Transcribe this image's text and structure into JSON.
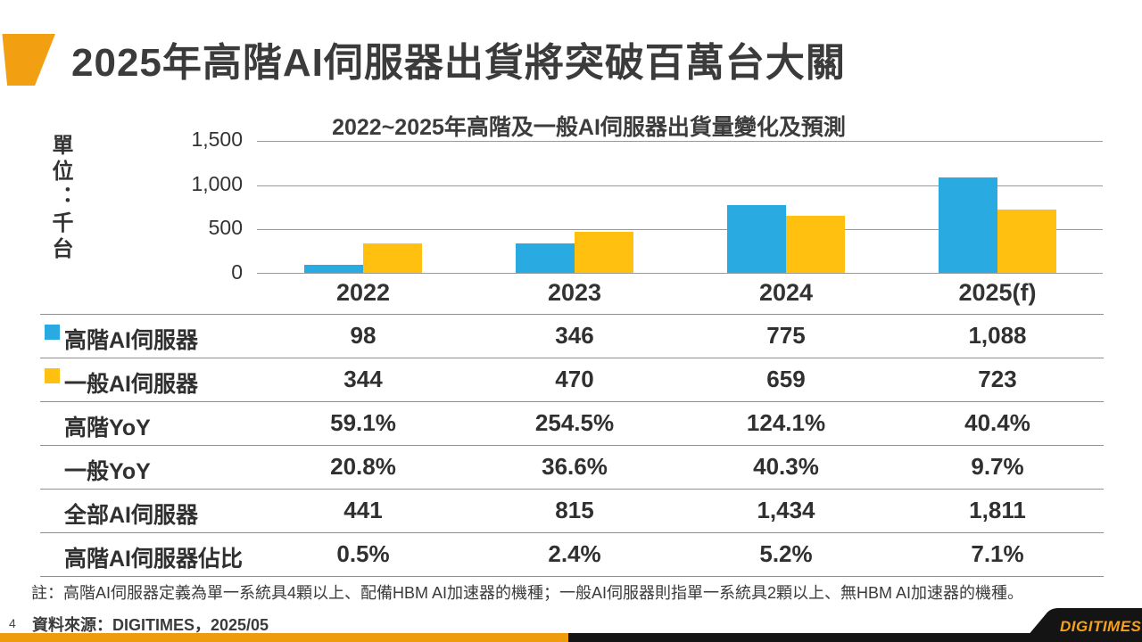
{
  "slide": {
    "title": "2025年高階AI伺服器出貨將突破百萬台大關",
    "page_number": "4",
    "source": "資料來源：DIGITIMES，2025/05",
    "footnote": "註：高階AI伺服器定義為單一系統具4顆以上、配備HBM AI加速器的機種；一般AI伺服器則指單一系統具2顆以上、無HBM AI加速器的機種。",
    "logo_text": "DIGITIMES"
  },
  "colors": {
    "accent_orange": "#F2A012",
    "bar_blue": "#29ABE2",
    "bar_yellow": "#FFC010",
    "footer_orange": "#EF9B0E",
    "footer_black": "#141414",
    "grid_gray": "#9A9A9A",
    "text_dark": "#3B3B3B"
  },
  "chart_data": {
    "type": "bar",
    "title": "2022~2025年高階及一般AI伺服器出貨量變化及預測",
    "unit_label": "單位：千台",
    "categories": [
      "2022",
      "2023",
      "2024",
      "2025(f)"
    ],
    "series": [
      {
        "name": "高階AI伺服器",
        "color": "#29ABE2",
        "values": [
          98,
          346,
          775,
          1088
        ]
      },
      {
        "name": "一般AI伺服器",
        "color": "#FFC010",
        "values": [
          344,
          470,
          659,
          723
        ]
      }
    ],
    "ylim": [
      0,
      1500
    ],
    "yticks": [
      0,
      500,
      1000,
      1500
    ],
    "ytick_labels": [
      "0",
      "500",
      "1,000",
      "1,500"
    ],
    "grid": true,
    "legend_position": "table-row-labels"
  },
  "table": {
    "columns": [
      "2022",
      "2023",
      "2024",
      "2025(f)"
    ],
    "rows": [
      {
        "label": "高階AI伺服器",
        "swatch": "#29ABE2",
        "values": [
          "98",
          "346",
          "775",
          "1,088"
        ]
      },
      {
        "label": "一般AI伺服器",
        "swatch": "#FFC010",
        "values": [
          "344",
          "470",
          "659",
          "723"
        ]
      },
      {
        "label": "高階YoY",
        "values": [
          "59.1%",
          "254.5%",
          "124.1%",
          "40.4%"
        ]
      },
      {
        "label": "一般YoY",
        "values": [
          "20.8%",
          "36.6%",
          "40.3%",
          "9.7%"
        ]
      },
      {
        "label": "全部AI伺服器",
        "values": [
          "441",
          "815",
          "1,434",
          "1,811"
        ]
      },
      {
        "label": "高階AI伺服器佔比",
        "values": [
          "0.5%",
          "2.4%",
          "5.2%",
          "7.1%"
        ]
      }
    ]
  }
}
